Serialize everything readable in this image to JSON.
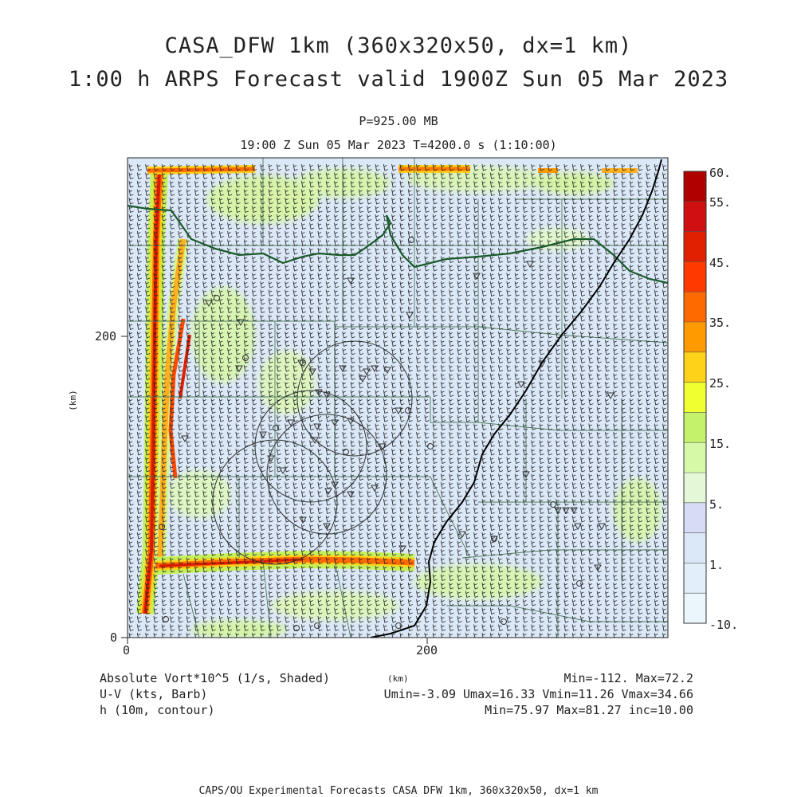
{
  "header": {
    "title_line1": "CASA_DFW 1km (360x320x50, dx=1 km)",
    "title_line2": "1:00 h ARPS Forecast valid 1900Z Sun 05 Mar 2023",
    "pressure_level": "P=925.00 MB",
    "valid_time": "19:00 Z Sun 05 Mar 2023   T=4200.0 s (1:10:00)"
  },
  "axes": {
    "y_label": "(km)",
    "x_label": "(km)",
    "y_ticks": [
      "0",
      "200"
    ],
    "x_ticks": [
      "0",
      "200"
    ]
  },
  "colorbar": {
    "labels": [
      "60.",
      "55.",
      "45.",
      "35.",
      "25.",
      "15.",
      "5.",
      "1.",
      "-10."
    ],
    "colors": [
      "#b00000",
      "#d01010",
      "#e02000",
      "#ff3a00",
      "#ff6a00",
      "#ff9a00",
      "#ffd21a",
      "#f0ff30",
      "#c4f26a",
      "#d6f9a8",
      "#e4f8d8",
      "#d6dcf6",
      "#dbe8f8",
      "#e2eefa",
      "#eaf6fb"
    ]
  },
  "legend": {
    "field1": "Absolute Vort*10^5 (1/s, Shaded)",
    "field2": "U-V (kts, Barb)",
    "field3": "h (10m, contour)",
    "stats1": "Min=-112. Max=72.2",
    "stats2": "Umin=-3.09 Umax=16.33 Vmin=11.26 Vmax=34.66",
    "stats3": "Min=75.97 Max=81.27 inc=10.00"
  },
  "footer": {
    "credit": "CAPS/OU Experimental Forecasts  CASA DFW 1km, 360x320x50, dx=1 km"
  },
  "map_colors": {
    "background_field": "#dbe8f8",
    "river_boundary": "#1a5a2a",
    "county_lines": "#3f6f4f",
    "barbs": "#222222",
    "thick_boundary": "#000000"
  }
}
